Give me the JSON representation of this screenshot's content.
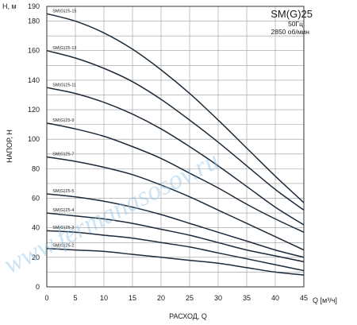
{
  "chart_data": {
    "type": "line",
    "title": "SM(G)25",
    "subtitle_lines": [
      "50Гц",
      "2850 об/мин"
    ],
    "xlabel": "РАСХОД, Q",
    "xunit": "Q [м³/ч]",
    "ylabel": "НАПОР, Н",
    "yunit": "Н, м",
    "xlim": [
      0,
      45
    ],
    "ylim": [
      0,
      190
    ],
    "xticks": [
      0,
      5,
      10,
      15,
      20,
      25,
      30,
      35,
      40,
      45
    ],
    "yticks": [
      0,
      20,
      40,
      60,
      80,
      100,
      120,
      140,
      160,
      180,
      190
    ],
    "grid": true,
    "watermark": "www.fermanasosov.ru",
    "x": [
      0,
      5,
      10,
      15,
      20,
      25,
      30,
      35,
      40,
      45
    ],
    "series": [
      {
        "name": "SM(G)25-15",
        "values": [
          185,
          180,
          172,
          161,
          147,
          131,
          113,
          94,
          75,
          57
        ]
      },
      {
        "name": "SM(G)25-13",
        "values": [
          160,
          155,
          148,
          139,
          127,
          113,
          98,
          82,
          66,
          52
        ]
      },
      {
        "name": "SM(G)25-11",
        "values": [
          135,
          131,
          125,
          117,
          107,
          95,
          82,
          68,
          54,
          42
        ]
      },
      {
        "name": "SM(G)25-9",
        "values": [
          111,
          107,
          102,
          95,
          87,
          77,
          67,
          56,
          46,
          37
        ]
      },
      {
        "name": "SM(G)25-7",
        "values": [
          88,
          85,
          81,
          76,
          69,
          61,
          52,
          43,
          34,
          25
        ]
      },
      {
        "name": "SM(G)25-5",
        "values": [
          63,
          61,
          58,
          54,
          49,
          43,
          37,
          31,
          25,
          20
        ]
      },
      {
        "name": "SM(G)25-4",
        "values": [
          50,
          48,
          46,
          43,
          39,
          35,
          30,
          25,
          21,
          17
        ]
      },
      {
        "name": "SM(G)25-3",
        "values": [
          38,
          37,
          35,
          33,
          30,
          27,
          23,
          19,
          15,
          11
        ]
      },
      {
        "name": "SM(G)25-2",
        "values": [
          26,
          25,
          24,
          22,
          20,
          18,
          16,
          13,
          10,
          8
        ]
      }
    ]
  }
}
